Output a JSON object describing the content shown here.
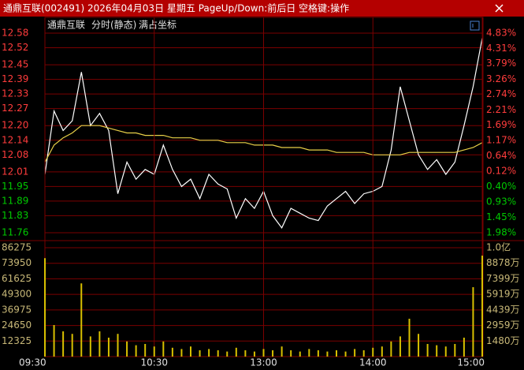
{
  "window_title": "通鼎互联(002491) 2026年04月03日 星期五 PageUp/Down:前后日 空格键:操作",
  "chart_data": [
    {
      "type": "line",
      "title": "通鼎互联",
      "annotations": [
        "分时(静态)",
        "满占坐标"
      ],
      "x": [
        0,
        5,
        10,
        15,
        20,
        25,
        30,
        35,
        40,
        45,
        50,
        55,
        60,
        65,
        70,
        75,
        80,
        85,
        90,
        95,
        100,
        105,
        110,
        115,
        120,
        125,
        130,
        135,
        140,
        145,
        150,
        155,
        160,
        165,
        170,
        175,
        180,
        185,
        190,
        195,
        200,
        205,
        210,
        215,
        220,
        225,
        230,
        235,
        240
      ],
      "xlim": [
        0,
        240
      ],
      "series": [
        {
          "color": "#ffffff",
          "values": [
            12.0,
            12.26,
            12.18,
            12.22,
            12.42,
            12.2,
            12.25,
            12.18,
            11.92,
            12.05,
            11.98,
            12.02,
            12.0,
            12.12,
            12.02,
            11.95,
            11.98,
            11.9,
            12.0,
            11.96,
            11.94,
            11.82,
            11.9,
            11.86,
            11.93,
            11.83,
            11.78,
            11.86,
            11.84,
            11.82,
            11.81,
            11.87,
            11.9,
            11.93,
            11.88,
            11.92,
            11.93,
            11.95,
            12.1,
            12.36,
            12.22,
            12.08,
            12.02,
            12.06,
            12.0,
            12.05,
            12.2,
            12.36,
            12.56
          ]
        },
        {
          "color": "#e8d048",
          "values": [
            12.05,
            12.12,
            12.15,
            12.17,
            12.2,
            12.2,
            12.2,
            12.19,
            12.18,
            12.17,
            12.17,
            12.16,
            12.16,
            12.16,
            12.15,
            12.15,
            12.15,
            12.14,
            12.14,
            12.14,
            12.13,
            12.13,
            12.13,
            12.12,
            12.12,
            12.12,
            12.11,
            12.11,
            12.11,
            12.1,
            12.1,
            12.1,
            12.09,
            12.09,
            12.09,
            12.09,
            12.08,
            12.08,
            12.08,
            12.08,
            12.09,
            12.09,
            12.09,
            12.09,
            12.09,
            12.09,
            12.1,
            12.11,
            12.13
          ]
        }
      ],
      "ylim": [
        11.76,
        12.58
      ],
      "yticks": [
        12.58,
        12.52,
        12.45,
        12.39,
        12.33,
        12.27,
        {
          "value": 12.2,
          "label": "12.20"
        },
        12.14,
        12.08,
        12.01,
        11.95,
        11.89,
        11.83,
        11.76
      ],
      "y2lim": [
        -1.98,
        4.83
      ],
      "y2ticks": [
        {
          "value": 4.83,
          "label": "4.83%"
        },
        {
          "value": 4.31,
          "label": "4.31%"
        },
        {
          "value": 3.79,
          "label": "3.79%"
        },
        {
          "value": 3.26,
          "label": "3.26%"
        },
        {
          "value": 2.74,
          "label": "2.74%"
        },
        {
          "value": 2.21,
          "label": "2.21%"
        },
        {
          "value": 1.69,
          "label": "1.69%"
        },
        {
          "value": 1.17,
          "label": "1.17%"
        },
        {
          "value": 0.64,
          "label": "0.64%"
        },
        {
          "value": 0.12,
          "label": "0.12%"
        },
        {
          "value": -0.4,
          "label": "0.40%"
        },
        {
          "value": -0.93,
          "label": "0.93%"
        },
        {
          "value": -1.45,
          "label": "1.45%"
        },
        {
          "value": -1.98,
          "label": "1.98%"
        }
      ],
      "up_color": "#ff3c3c",
      "down_color": "#00c800",
      "grid": true
    },
    {
      "type": "bar",
      "x": [
        0,
        5,
        10,
        15,
        20,
        25,
        30,
        35,
        40,
        45,
        50,
        55,
        60,
        65,
        70,
        75,
        80,
        85,
        90,
        95,
        100,
        105,
        110,
        115,
        120,
        125,
        130,
        135,
        140,
        145,
        150,
        155,
        160,
        165,
        170,
        175,
        180,
        185,
        190,
        195,
        200,
        205,
        210,
        215,
        220,
        225,
        230,
        235,
        240
      ],
      "xlim": [
        0,
        240
      ],
      "xticks": [
        {
          "value": 0,
          "label": "09:30"
        },
        {
          "value": 60,
          "label": "10:30"
        },
        {
          "value": 120,
          "label": "13:00"
        },
        {
          "value": 180,
          "label": "14:00"
        },
        {
          "value": 240,
          "label": "15:00"
        }
      ],
      "values": [
        78000,
        25000,
        20000,
        18000,
        58000,
        16000,
        20000,
        15000,
        18000,
        12000,
        9000,
        10000,
        8000,
        12000,
        7000,
        6000,
        8000,
        5000,
        6000,
        5000,
        4000,
        7000,
        5000,
        4000,
        6000,
        5000,
        8000,
        5000,
        4000,
        6000,
        5000,
        4000,
        5000,
        4000,
        6000,
        5000,
        7000,
        8000,
        12000,
        16000,
        30000,
        18000,
        10000,
        9000,
        8000,
        10000,
        15000,
        55000,
        80000
      ],
      "color": "#d8c000",
      "ylim": [
        0,
        86275
      ],
      "yticks": [
        86275,
        73950,
        61625,
        49300,
        36975,
        24650,
        12325
      ],
      "y2lim": [
        0,
        103600000
      ],
      "y2ticks": [
        {
          "value": 103600000,
          "label": "1.0亿"
        },
        {
          "value": 88780000,
          "label": "8878万"
        },
        {
          "value": 73990000,
          "label": "7399万"
        },
        {
          "value": 59190000,
          "label": "5919万"
        },
        {
          "value": 44390000,
          "label": "4439万"
        },
        {
          "value": 29590000,
          "label": "2959万"
        },
        {
          "value": 14800000,
          "label": "1480万"
        }
      ],
      "grid": true
    }
  ]
}
